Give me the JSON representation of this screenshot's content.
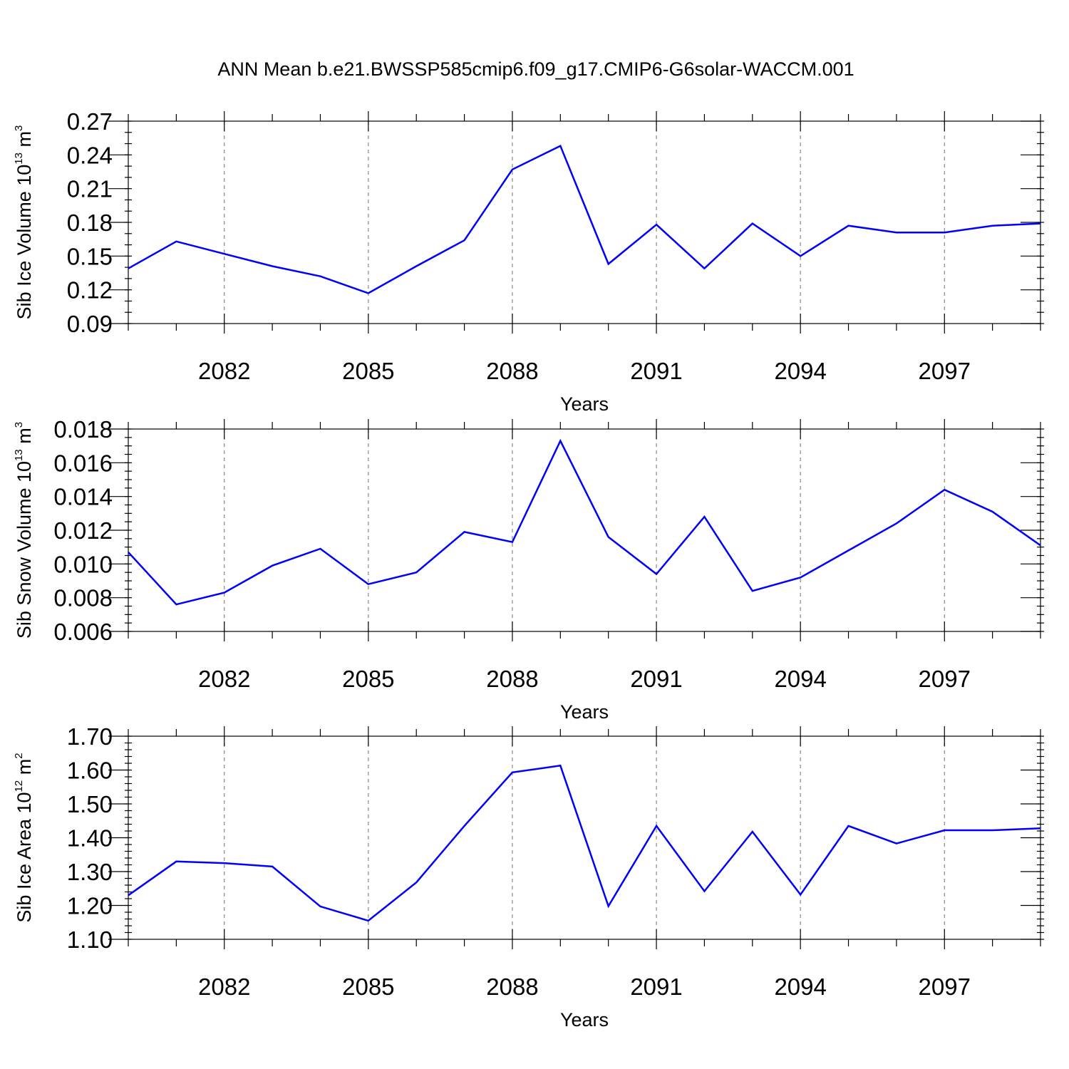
{
  "figure": {
    "title": "ANN Mean b.e21.BWSSP585cmip6.f09_g17.CMIP6-G6solar-WACCM.001"
  },
  "chart_data": [
    {
      "type": "line",
      "xlabel": "Years",
      "ylabel": {
        "main": "Sib Ice Volume 10",
        "exp": "13",
        "unit": " m",
        "unit_exp": "3"
      },
      "xlim": [
        2080,
        2099
      ],
      "ylim": [
        0.09,
        0.27
      ],
      "xticks": [
        2082,
        2085,
        2088,
        2091,
        2094,
        2097
      ],
      "xtick_labels": [
        "2082",
        "2085",
        "2088",
        "2091",
        "2094",
        "2097"
      ],
      "yticks": [
        0.09,
        0.12,
        0.15,
        0.18,
        0.21,
        0.24,
        0.27
      ],
      "ytick_labels": [
        "0.09",
        "0.12",
        "0.15",
        "0.18",
        "0.21",
        "0.24",
        "0.27"
      ],
      "y_minor_step": 0.01,
      "grid": "x-major-dashed",
      "line_color": "#0000ff",
      "series": [
        {
          "x": [
            2080,
            2081,
            2082,
            2083,
            2084,
            2085,
            2086,
            2087,
            2088,
            2089,
            2090,
            2091,
            2092,
            2093,
            2094,
            2095,
            2096,
            2097,
            2098,
            2099
          ],
          "values": [
            0.139,
            0.163,
            0.152,
            0.141,
            0.132,
            0.117,
            0.141,
            0.164,
            0.227,
            0.248,
            0.143,
            0.178,
            0.139,
            0.179,
            0.15,
            0.177,
            0.171,
            0.171,
            0.177,
            0.179
          ]
        }
      ]
    },
    {
      "type": "line",
      "xlabel": "Years",
      "ylabel": {
        "main": "Sib Snow Volume 10",
        "exp": "13",
        "unit": " m",
        "unit_exp": "3"
      },
      "xlim": [
        2080,
        2099
      ],
      "ylim": [
        0.006,
        0.018
      ],
      "xticks": [
        2082,
        2085,
        2088,
        2091,
        2094,
        2097
      ],
      "xtick_labels": [
        "2082",
        "2085",
        "2088",
        "2091",
        "2094",
        "2097"
      ],
      "yticks": [
        0.006,
        0.008,
        0.01,
        0.012,
        0.014,
        0.016,
        0.018
      ],
      "ytick_labels": [
        "0.006",
        "0.008",
        "0.010",
        "0.012",
        "0.014",
        "0.016",
        "0.018"
      ],
      "y_minor_step": 0.0005,
      "grid": "x-major-dashed",
      "line_color": "#0000ff",
      "series": [
        {
          "x": [
            2080,
            2081,
            2082,
            2083,
            2084,
            2085,
            2086,
            2087,
            2088,
            2089,
            2090,
            2091,
            2092,
            2093,
            2094,
            2095,
            2096,
            2097,
            2098,
            2099
          ],
          "values": [
            0.0107,
            0.0076,
            0.0083,
            0.0099,
            0.0109,
            0.0088,
            0.0095,
            0.0119,
            0.0113,
            0.0173,
            0.0116,
            0.0094,
            0.0128,
            0.0084,
            0.0092,
            0.0108,
            0.0124,
            0.0144,
            0.0131,
            0.0111
          ]
        }
      ]
    },
    {
      "type": "line",
      "xlabel": "Years",
      "ylabel": {
        "main": "Sib Ice Area 10",
        "exp": "12",
        "unit": " m",
        "unit_exp": "2"
      },
      "xlim": [
        2080,
        2099
      ],
      "ylim": [
        1.1,
        1.7
      ],
      "xticks": [
        2082,
        2085,
        2088,
        2091,
        2094,
        2097
      ],
      "xtick_labels": [
        "2082",
        "2085",
        "2088",
        "2091",
        "2094",
        "2097"
      ],
      "yticks": [
        1.1,
        1.2,
        1.3,
        1.4,
        1.5,
        1.6,
        1.7
      ],
      "ytick_labels": [
        "1.10",
        "1.20",
        "1.30",
        "1.40",
        "1.50",
        "1.60",
        "1.70"
      ],
      "y_minor_step": 0.02,
      "grid": "x-major-dashed",
      "line_color": "#0000ff",
      "series": [
        {
          "x": [
            2080,
            2081,
            2082,
            2083,
            2084,
            2085,
            2086,
            2087,
            2088,
            2089,
            2090,
            2091,
            2092,
            2093,
            2094,
            2095,
            2096,
            2097,
            2098,
            2099
          ],
          "values": [
            1.23,
            1.33,
            1.325,
            1.315,
            1.197,
            1.155,
            1.268,
            1.435,
            1.593,
            1.613,
            1.198,
            1.435,
            1.242,
            1.418,
            1.232,
            1.435,
            1.383,
            1.422,
            1.422,
            1.428
          ]
        }
      ]
    }
  ]
}
